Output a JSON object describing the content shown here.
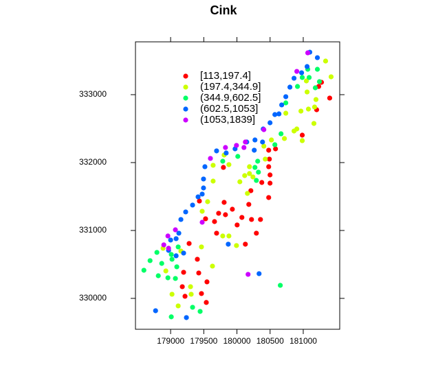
{
  "chart_data": {
    "type": "scatter",
    "title": "Cink",
    "xlim": [
      178470,
      181550
    ],
    "ylim": [
      329545,
      333778
    ],
    "xticks": [
      179000,
      179500,
      180000,
      180500,
      181000
    ],
    "yticks": [
      330000,
      331000,
      332000,
      333000
    ],
    "legend": "top-left",
    "series": [
      {
        "name": "[113,197.4]",
        "color": "#ff0000",
        "x": [
          181275,
          181233,
          181202,
          180985,
          180582,
          180479,
          180489,
          180479,
          180499,
          180499,
          180479,
          180375,
          180210,
          180179,
          180075,
          180220,
          180355,
          180293,
          180127,
          180003,
          179931,
          179807,
          179724,
          179662,
          179827,
          179693,
          179527,
          179434,
          179279,
          179403,
          179424,
          179548,
          179465,
          179538,
          179196,
          179176,
          179217,
          181399,
          179796
        ],
        "y": [
          333182,
          333121,
          332778,
          332404,
          332202,
          332182,
          332051,
          331939,
          331818,
          331697,
          331485,
          331707,
          331586,
          331384,
          331192,
          331162,
          331162,
          330960,
          330798,
          331081,
          331313,
          331414,
          331253,
          331131,
          331232,
          330960,
          331172,
          331434,
          330808,
          330576,
          330374,
          330243,
          330071,
          329940,
          330384,
          330172,
          330031,
          332950,
          331929
        ]
      },
      {
        "name": "(197.4,344.9]",
        "color": "#ccff00",
        "x": [
          181337,
          181420,
          181047,
          181058,
          181192,
          181171,
          181078,
          180965,
          181161,
          180985,
          180903,
          180861,
          180737,
          180716,
          180520,
          180406,
          180427,
          180189,
          180189,
          180241,
          180117,
          180044,
          180158,
          179879,
          179807,
          179641,
          179641,
          179558,
          179476,
          179993,
          179879,
          179786,
          179465,
          179631,
          179300,
          179310,
          179114,
          179021,
          178928,
          178886,
          179155
        ],
        "y": [
          333495,
          333263,
          333202,
          333040,
          332929,
          332818,
          332788,
          332758,
          332576,
          332323,
          332495,
          332465,
          332727,
          332354,
          332333,
          332242,
          332051,
          331939,
          331838,
          331788,
          331808,
          331717,
          331546,
          331970,
          332111,
          331960,
          331727,
          331424,
          331283,
          330778,
          330919,
          330919,
          330758,
          330475,
          330172,
          330061,
          329889,
          330061,
          330404,
          330738,
          330697
        ]
      },
      {
        "name": "(344.9,602.5]",
        "color": "#00ff66",
        "x": [
          181068,
          181213,
          181089,
          181244,
          180985,
          180913,
          181182,
          180737,
          180665,
          180572,
          180313,
          180272,
          180324,
          180013,
          179786,
          180293,
          179010,
          179021,
          179114,
          179093,
          178866,
          178690,
          178597,
          178793,
          178959,
          179072,
          179010,
          179331,
          179445,
          180654,
          178814
        ],
        "y": [
          333374,
          333374,
          333253,
          333192,
          333253,
          333121,
          333101,
          332879,
          332424,
          332263,
          332020,
          331929,
          331859,
          332091,
          332020,
          331737,
          330647,
          330576,
          330758,
          330465,
          330515,
          330556,
          330414,
          330677,
          330303,
          330293,
          329728,
          329869,
          329808,
          330192,
          330333
        ]
      },
      {
        "name": "(602.5,1053]",
        "color": "#0066ff",
        "x": [
          181099,
          181213,
          181058,
          180975,
          180861,
          180799,
          180737,
          180675,
          180634,
          180572,
          180499,
          180396,
          180386,
          180272,
          180261,
          180148,
          179972,
          179838,
          179693,
          179517,
          179496,
          179496,
          179476,
          179414,
          179331,
          179227,
          179155,
          179124,
          179083,
          179000,
          178969,
          179083,
          179196,
          179869,
          180334,
          178773,
          179238
        ],
        "y": [
          333626,
          333545,
          333414,
          333323,
          333242,
          333111,
          332970,
          332849,
          332717,
          332707,
          332586,
          332495,
          332303,
          332333,
          332182,
          332303,
          332202,
          332141,
          332172,
          331939,
          331758,
          331626,
          331536,
          331495,
          331374,
          331273,
          331162,
          330960,
          330879,
          330859,
          330707,
          330627,
          330667,
          330798,
          330364,
          329818,
          329717
        ]
      },
      {
        "name": "(1053,1839]",
        "color": "#cc00ff",
        "x": [
          181068,
          180903,
          180406,
          180127,
          180106,
          179993,
          179827,
          179600,
          179476,
          179072,
          178959,
          178897,
          178969,
          180168
        ],
        "y": [
          333616,
          333343,
          332485,
          332303,
          332222,
          332253,
          332222,
          332061,
          331121,
          331010,
          330919,
          330788,
          330738,
          330354
        ]
      }
    ]
  }
}
